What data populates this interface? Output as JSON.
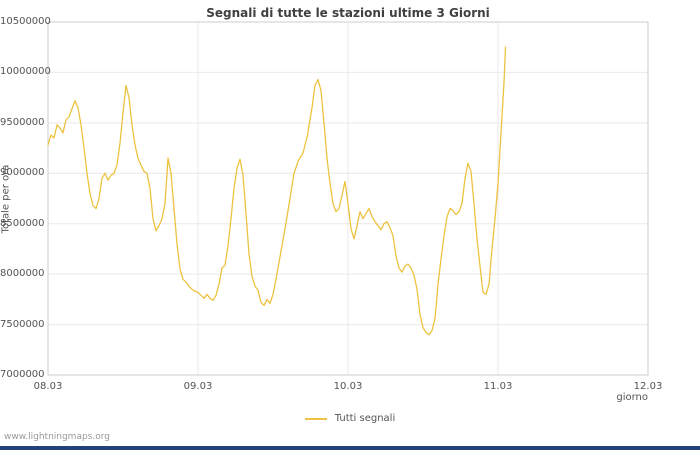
{
  "chart_data": {
    "type": "line",
    "title": "Segnali di tutte le stazioni ultime 3 Giorni",
    "xlabel": "giorno",
    "ylabel": "Totale per ora",
    "xlim": [
      0,
      4
    ],
    "ylim": [
      7000000,
      10500000
    ],
    "grid": true,
    "legend_position": "bottom-center",
    "x_ticks": [
      {
        "value": 0,
        "label": "08.03"
      },
      {
        "value": 1,
        "label": "09.03"
      },
      {
        "value": 2,
        "label": "10.03"
      },
      {
        "value": 3,
        "label": "11.03"
      },
      {
        "value": 4,
        "label": "12.03"
      }
    ],
    "y_ticks": [
      {
        "value": 7000000,
        "label": "7000000"
      },
      {
        "value": 7500000,
        "label": "7500000"
      },
      {
        "value": 8000000,
        "label": "8000000"
      },
      {
        "value": 8500000,
        "label": "8500000"
      },
      {
        "value": 9000000,
        "label": "9000000"
      },
      {
        "value": 9500000,
        "label": "9500000"
      },
      {
        "value": 10000000,
        "label": "10000000"
      },
      {
        "value": 10500000,
        "label": "10500000"
      }
    ],
    "legend": [
      {
        "label": "Tutti segnali",
        "color": "#edc240"
      }
    ],
    "series": [
      {
        "name": "Tutti segnali",
        "color": "#edc240",
        "points": [
          [
            0.0,
            9280000
          ],
          [
            0.02,
            9380000
          ],
          [
            0.04,
            9350000
          ],
          [
            0.06,
            9480000
          ],
          [
            0.08,
            9450000
          ],
          [
            0.1,
            9400000
          ],
          [
            0.12,
            9530000
          ],
          [
            0.14,
            9560000
          ],
          [
            0.16,
            9640000
          ],
          [
            0.18,
            9720000
          ],
          [
            0.2,
            9650000
          ],
          [
            0.22,
            9480000
          ],
          [
            0.24,
            9250000
          ],
          [
            0.26,
            9000000
          ],
          [
            0.28,
            8800000
          ],
          [
            0.3,
            8680000
          ],
          [
            0.32,
            8650000
          ],
          [
            0.34,
            8750000
          ],
          [
            0.36,
            8950000
          ],
          [
            0.38,
            9000000
          ],
          [
            0.4,
            8930000
          ],
          [
            0.42,
            8980000
          ],
          [
            0.44,
            9000000
          ],
          [
            0.46,
            9080000
          ],
          [
            0.48,
            9300000
          ],
          [
            0.5,
            9600000
          ],
          [
            0.52,
            9870000
          ],
          [
            0.54,
            9750000
          ],
          [
            0.56,
            9480000
          ],
          [
            0.58,
            9280000
          ],
          [
            0.6,
            9150000
          ],
          [
            0.62,
            9080000
          ],
          [
            0.64,
            9020000
          ],
          [
            0.66,
            9000000
          ],
          [
            0.68,
            8850000
          ],
          [
            0.7,
            8550000
          ],
          [
            0.72,
            8430000
          ],
          [
            0.74,
            8480000
          ],
          [
            0.76,
            8550000
          ],
          [
            0.78,
            8700000
          ],
          [
            0.8,
            9150000
          ],
          [
            0.82,
            9000000
          ],
          [
            0.84,
            8650000
          ],
          [
            0.86,
            8300000
          ],
          [
            0.88,
            8050000
          ],
          [
            0.9,
            7950000
          ],
          [
            0.92,
            7920000
          ],
          [
            0.94,
            7880000
          ],
          [
            0.96,
            7850000
          ],
          [
            0.98,
            7830000
          ],
          [
            1.0,
            7820000
          ],
          [
            1.02,
            7790000
          ],
          [
            1.04,
            7760000
          ],
          [
            1.06,
            7800000
          ],
          [
            1.08,
            7760000
          ],
          [
            1.1,
            7740000
          ],
          [
            1.12,
            7790000
          ],
          [
            1.14,
            7900000
          ],
          [
            1.16,
            8060000
          ],
          [
            1.18,
            8090000
          ],
          [
            1.2,
            8280000
          ],
          [
            1.22,
            8550000
          ],
          [
            1.24,
            8850000
          ],
          [
            1.26,
            9050000
          ],
          [
            1.28,
            9140000
          ],
          [
            1.3,
            8980000
          ],
          [
            1.32,
            8600000
          ],
          [
            1.34,
            8200000
          ],
          [
            1.36,
            7980000
          ],
          [
            1.38,
            7880000
          ],
          [
            1.4,
            7840000
          ],
          [
            1.42,
            7720000
          ],
          [
            1.44,
            7690000
          ],
          [
            1.46,
            7750000
          ],
          [
            1.48,
            7710000
          ],
          [
            1.5,
            7800000
          ],
          [
            1.52,
            7950000
          ],
          [
            1.55,
            8200000
          ],
          [
            1.58,
            8450000
          ],
          [
            1.61,
            8720000
          ],
          [
            1.64,
            9000000
          ],
          [
            1.67,
            9130000
          ],
          [
            1.7,
            9200000
          ],
          [
            1.73,
            9380000
          ],
          [
            1.76,
            9650000
          ],
          [
            1.78,
            9870000
          ],
          [
            1.8,
            9930000
          ],
          [
            1.82,
            9820000
          ],
          [
            1.84,
            9500000
          ],
          [
            1.86,
            9150000
          ],
          [
            1.88,
            8900000
          ],
          [
            1.9,
            8700000
          ],
          [
            1.92,
            8620000
          ],
          [
            1.94,
            8650000
          ],
          [
            1.96,
            8780000
          ],
          [
            1.98,
            8920000
          ],
          [
            2.0,
            8700000
          ],
          [
            2.02,
            8450000
          ],
          [
            2.04,
            8350000
          ],
          [
            2.06,
            8480000
          ],
          [
            2.08,
            8620000
          ],
          [
            2.1,
            8550000
          ],
          [
            2.12,
            8600000
          ],
          [
            2.14,
            8650000
          ],
          [
            2.16,
            8570000
          ],
          [
            2.18,
            8520000
          ],
          [
            2.2,
            8480000
          ],
          [
            2.22,
            8440000
          ],
          [
            2.24,
            8500000
          ],
          [
            2.26,
            8520000
          ],
          [
            2.28,
            8460000
          ],
          [
            2.3,
            8380000
          ],
          [
            2.32,
            8180000
          ],
          [
            2.34,
            8060000
          ],
          [
            2.36,
            8020000
          ],
          [
            2.38,
            8080000
          ],
          [
            2.4,
            8100000
          ],
          [
            2.42,
            8060000
          ],
          [
            2.44,
            7990000
          ],
          [
            2.46,
            7850000
          ],
          [
            2.48,
            7600000
          ],
          [
            2.5,
            7470000
          ],
          [
            2.52,
            7420000
          ],
          [
            2.54,
            7400000
          ],
          [
            2.56,
            7440000
          ],
          [
            2.58,
            7560000
          ],
          [
            2.6,
            7900000
          ],
          [
            2.62,
            8150000
          ],
          [
            2.64,
            8380000
          ],
          [
            2.66,
            8570000
          ],
          [
            2.68,
            8650000
          ],
          [
            2.7,
            8630000
          ],
          [
            2.72,
            8590000
          ],
          [
            2.74,
            8620000
          ],
          [
            2.76,
            8700000
          ],
          [
            2.78,
            8950000
          ],
          [
            2.8,
            9100000
          ],
          [
            2.82,
            9020000
          ],
          [
            2.84,
            8700000
          ],
          [
            2.86,
            8350000
          ],
          [
            2.88,
            8080000
          ],
          [
            2.9,
            7820000
          ],
          [
            2.92,
            7800000
          ],
          [
            2.94,
            7900000
          ],
          [
            2.96,
            8250000
          ],
          [
            2.98,
            8550000
          ],
          [
            3.0,
            8900000
          ],
          [
            3.02,
            9400000
          ],
          [
            3.04,
            9900000
          ],
          [
            3.05,
            10250000
          ]
        ]
      }
    ]
  },
  "footer": {
    "watermark": "www.lightningmaps.org"
  },
  "colors": {
    "line": "#edc240",
    "footer_bar": "#23427c",
    "grid": "#e9e9e9",
    "plot_border": "#cccccc"
  }
}
